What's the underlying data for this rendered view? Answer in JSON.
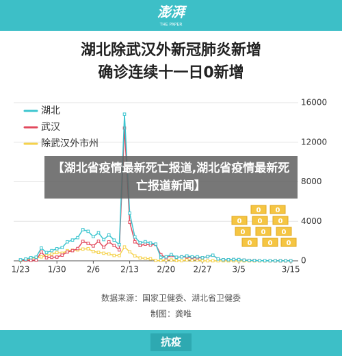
{
  "header": {
    "logo": "澎湃",
    "logo_sub": "THE PAPER"
  },
  "chart_data": {
    "type": "line",
    "title": [
      "湖北除武汉外新冠肺炎新增",
      "确诊连续十一日0新增"
    ],
    "categories": [
      "1/23",
      null,
      null,
      null,
      null,
      null,
      null,
      "1/30",
      null,
      null,
      null,
      null,
      null,
      null,
      "2/6",
      null,
      null,
      null,
      null,
      null,
      null,
      "2/13",
      null,
      null,
      null,
      null,
      null,
      null,
      "2/20",
      null,
      null,
      null,
      null,
      null,
      null,
      "2/27",
      null,
      null,
      null,
      null,
      null,
      null,
      "3/5",
      null,
      null,
      null,
      null,
      null,
      null,
      null,
      null,
      null,
      "3/15"
    ],
    "series": [
      {
        "name": "湖北",
        "color": "#3cc5cf",
        "values": [
          105,
          180,
          323,
          371,
          1291,
          840,
          1032,
          1220,
          1347,
          1921,
          2103,
          2345,
          3156,
          2987,
          2447,
          2841,
          2147,
          2618,
          2097,
          1638,
          14840,
          4823,
          2420,
          1843,
          1933,
          1807,
          1693,
          349,
          411,
          631,
          366,
          398,
          499,
          401,
          409,
          318,
          423,
          570,
          196,
          114,
          115,
          134,
          126,
          74,
          41,
          36,
          17,
          13,
          8,
          5,
          4,
          4,
          4
        ]
      },
      {
        "name": "武汉",
        "color": "#e2495d",
        "values": [
          70,
          77,
          46,
          80,
          892,
          315,
          356,
          378,
          576,
          894,
          1033,
          1242,
          1967,
          1766,
          1501,
          1985,
          1379,
          1920,
          1552,
          1104,
          13436,
          3910,
          1923,
          1548,
          1690,
          1600,
          1660,
          615,
          319,
          541,
          348,
          409,
          401,
          334,
          312,
          313,
          420,
          565,
          193,
          111,
          114,
          131,
          126,
          74,
          41,
          36,
          17,
          13,
          8,
          5,
          4,
          4,
          4
        ]
      },
      {
        "name": "除武汉外市州",
        "color": "#f5d24c",
        "values": [
          35,
          103,
          277,
          291,
          399,
          525,
          676,
          842,
          771,
          1027,
          1070,
          1103,
          1189,
          1221,
          946,
          856,
          768,
          698,
          545,
          534,
          1404,
          913,
          497,
          295,
          243,
          207,
          33,
          30,
          92,
          90,
          18,
          10,
          98,
          67,
          97,
          5,
          3,
          5,
          3,
          3,
          1,
          3,
          0,
          0,
          0,
          0,
          0,
          0,
          0,
          0,
          0,
          0,
          0
        ]
      }
    ],
    "ylim": [
      0,
      16000
    ],
    "yticks": [
      0,
      4000,
      8000,
      12000,
      16000
    ],
    "grid": true,
    "legend": "top-left",
    "zero_label": "0",
    "source": "数据来源：国家卫健委、湖北省卫健委",
    "credit": "制图：龚唯"
  },
  "banner": "【湖北省疫情最新死亡报道,湖北省疫情最新死亡报道新闻】",
  "footer": "抗疫"
}
